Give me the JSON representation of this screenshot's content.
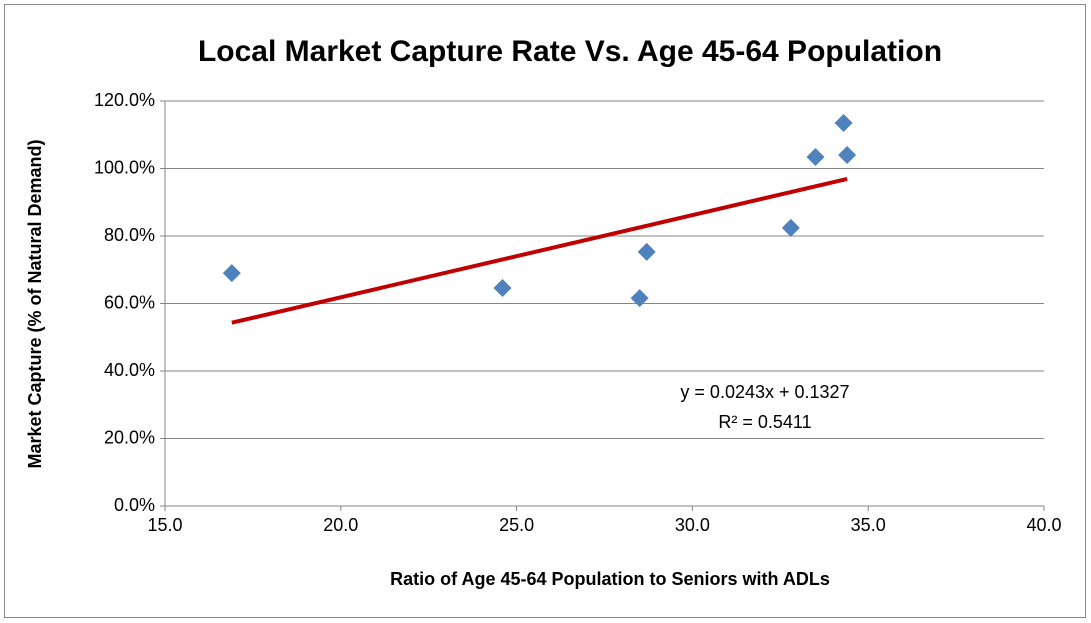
{
  "chart_data": {
    "type": "scatter",
    "title": "Local Market Capture Rate Vs. Age 45-64 Population",
    "x_label": "Ratio of Age 45-64 Population to Seniors with ADLs",
    "y_label": "Market Capture (% of Natural Demand)",
    "points": {
      "color": "#4f81bd",
      "x": [
        16.9,
        24.6,
        28.5,
        28.7,
        32.8,
        33.5,
        34.3,
        34.4
      ],
      "values": [
        69.0,
        64.6,
        61.6,
        75.3,
        82.4,
        103.4,
        113.5,
        104.0
      ]
    },
    "trendline": {
      "color": "#c00000",
      "x": [
        16.9,
        34.4
      ],
      "values": [
        54.3,
        96.9
      ]
    },
    "annotations": [
      "y = 0.0243x + 0.1327",
      "R² = 0.5411"
    ],
    "xlim": [
      15,
      40
    ],
    "xticks": [
      {
        "value": 15,
        "label": "15.0"
      },
      {
        "value": 20,
        "label": "20.0"
      },
      {
        "value": 25,
        "label": "25.0"
      },
      {
        "value": 30,
        "label": "30.0"
      },
      {
        "value": 35,
        "label": "35.0"
      },
      {
        "value": 40,
        "label": "40.0"
      }
    ],
    "ylim": [
      0,
      120
    ],
    "yticks": [
      {
        "value": 0,
        "label": "0.0%"
      },
      {
        "value": 20,
        "label": "20.0%"
      },
      {
        "value": 40,
        "label": "40.0%"
      },
      {
        "value": 60,
        "label": "60.0%"
      },
      {
        "value": 80,
        "label": "80.0%"
      },
      {
        "value": 100,
        "label": "100.0%"
      },
      {
        "value": 120,
        "label": "120.0%"
      }
    ],
    "grid": true
  }
}
